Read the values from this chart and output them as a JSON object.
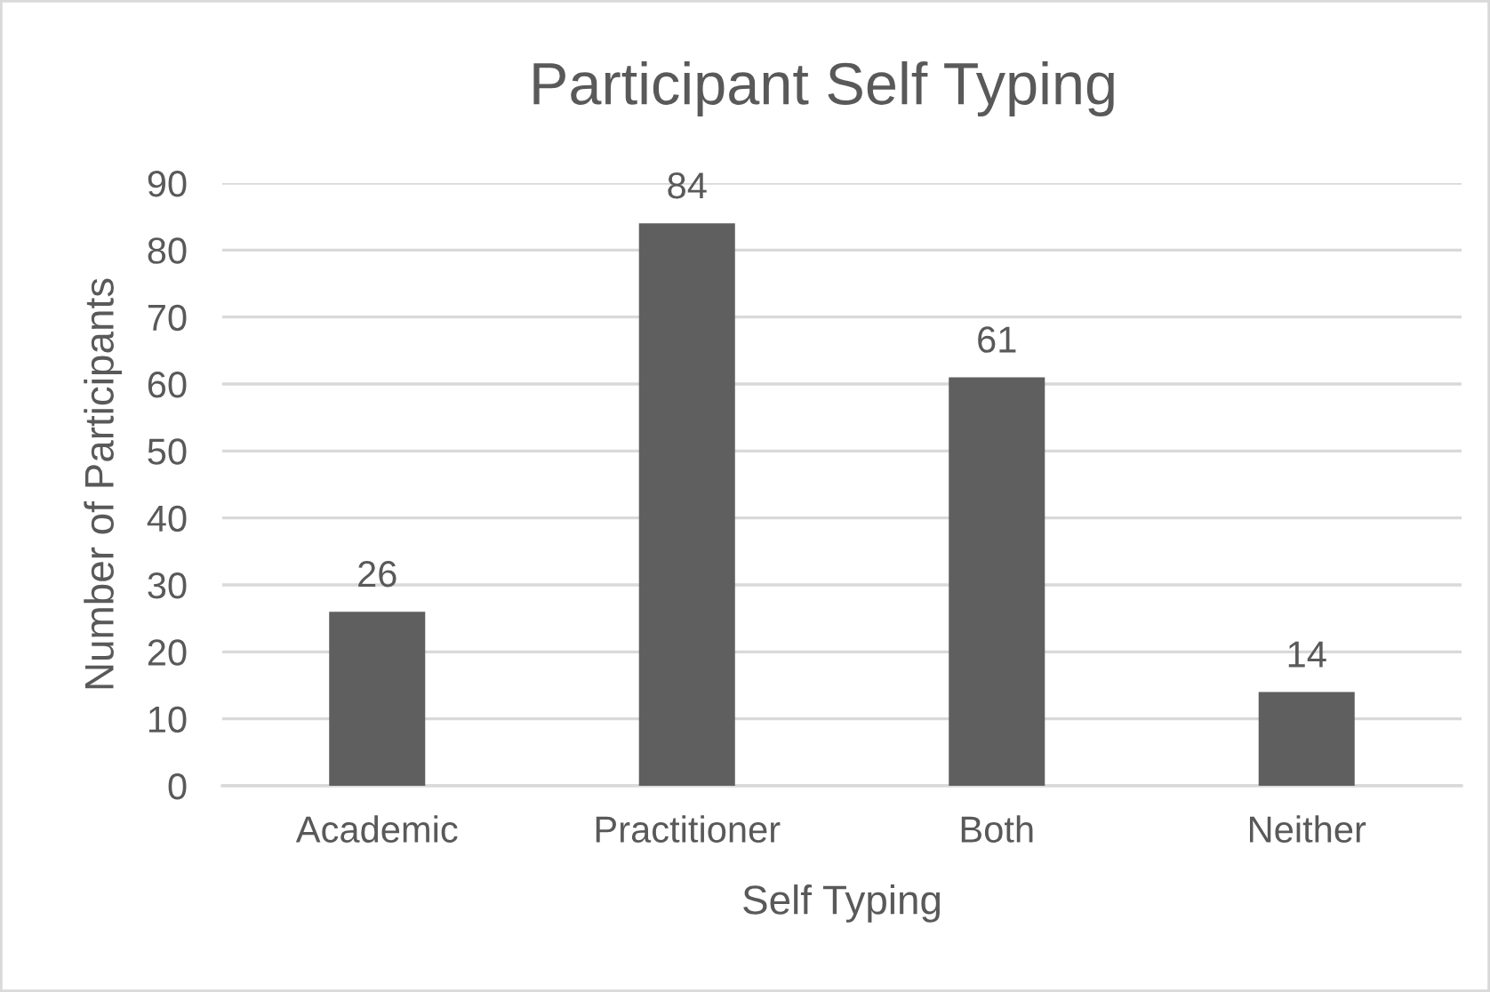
{
  "chart_data": {
    "type": "bar",
    "title": "Participant Self Typing",
    "xlabel": "Self Typing",
    "ylabel": "Number of Participants",
    "categories": [
      "Academic",
      "Practitioner",
      "Both",
      "Neither"
    ],
    "values": [
      26,
      84,
      61,
      14
    ],
    "color": "#5f5f5f",
    "ylim": [
      0,
      90
    ],
    "yticks": [
      0,
      10,
      20,
      30,
      40,
      50,
      60,
      70,
      80,
      90
    ],
    "grid": "y",
    "data_labels": true
  }
}
